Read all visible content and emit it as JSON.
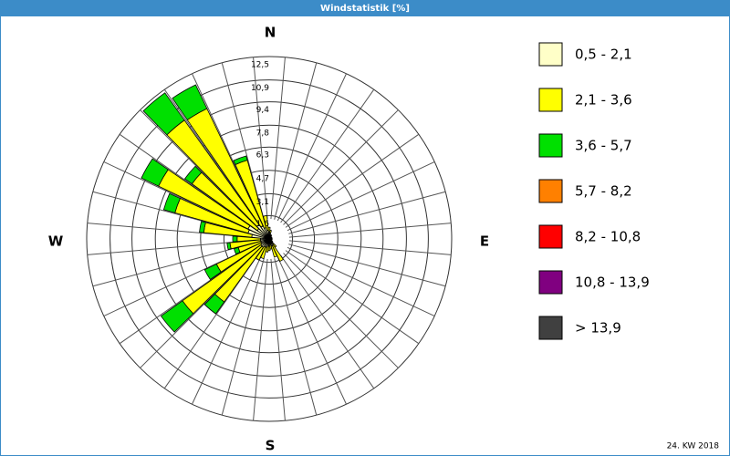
{
  "chart_data": {
    "type": "windrose",
    "title": "Windstatistik [%]",
    "footer": "24. KW 2018",
    "cardinal_labels": [
      "N",
      "E",
      "S",
      "W"
    ],
    "x": [
      0,
      10,
      20,
      30,
      40,
      50,
      60,
      70,
      80,
      90,
      100,
      110,
      120,
      130,
      140,
      150,
      160,
      170,
      180,
      190,
      200,
      210,
      220,
      230,
      240,
      250,
      260,
      270,
      280,
      290,
      300,
      310,
      320,
      330,
      340,
      350
    ],
    "ylim": [
      0,
      12.5
    ],
    "yticks": [
      {
        "value": 1.6,
        "label": "1,6"
      },
      {
        "value": 3.1,
        "label": "3,1"
      },
      {
        "value": 4.7,
        "label": "4,7"
      },
      {
        "value": 6.3,
        "label": "6,3"
      },
      {
        "value": 7.8,
        "label": "7,8"
      },
      {
        "value": 9.4,
        "label": "9,4"
      },
      {
        "value": 10.9,
        "label": "10,9"
      },
      {
        "value": 12.5,
        "label": "12,5"
      }
    ],
    "series": [
      {
        "name": "0,5 - 2,1",
        "color": "#ffffc8",
        "values": [
          0.5,
          0.4,
          0.3,
          0.3,
          0.2,
          0.2,
          0.2,
          0.2,
          0.2,
          0.2,
          0.2,
          0.2,
          0.2,
          0.3,
          0.4,
          0.5,
          0.5,
          0.4,
          0.5,
          0.5,
          0.6,
          0.6,
          0.7,
          0.7,
          0.6,
          0.6,
          0.6,
          0.6,
          1.2,
          1.5,
          1.6,
          1.0,
          1.2,
          1.0,
          0.8,
          0.6
        ]
      },
      {
        "name": "2,1 - 3,6",
        "color": "#ffff00",
        "values": [
          0.3,
          0.2,
          0,
          0,
          0,
          0,
          0,
          0,
          0,
          0,
          0,
          0,
          0,
          0,
          0.3,
          1.2,
          0.8,
          0.3,
          0.3,
          0.4,
          0.8,
          1.0,
          4.6,
          6.6,
          3.4,
          1.6,
          2.1,
          1.6,
          3.3,
          5.2,
          6.8,
          5.5,
          8.8,
          8.9,
          4.8,
          1.0
        ]
      },
      {
        "name": "3,6 - 5,7",
        "color": "#00e000",
        "values": [
          0,
          0,
          0,
          0,
          0,
          0,
          0,
          0,
          0,
          0,
          0,
          0,
          0,
          0,
          0,
          0,
          0,
          0,
          0,
          0,
          0,
          0,
          1.0,
          1.8,
          0.9,
          0.3,
          0.2,
          0.3,
          0.3,
          0.8,
          1.3,
          0.6,
          2.3,
          1.8,
          0.3,
          0
        ]
      },
      {
        "name": "5,7 - 8,2",
        "color": "#ff8000",
        "values": [
          0,
          0,
          0,
          0,
          0,
          0,
          0,
          0,
          0,
          0,
          0,
          0,
          0,
          0,
          0,
          0,
          0,
          0,
          0,
          0,
          0,
          0,
          0,
          0,
          0,
          0,
          0,
          0,
          0,
          0,
          0,
          0,
          0,
          0,
          0,
          0
        ]
      },
      {
        "name": "8,2 - 10,8",
        "color": "#ff0000",
        "values": [
          0,
          0,
          0,
          0,
          0,
          0,
          0,
          0,
          0,
          0,
          0,
          0,
          0,
          0,
          0,
          0,
          0,
          0,
          0,
          0,
          0,
          0,
          0,
          0,
          0,
          0,
          0,
          0,
          0,
          0,
          0,
          0,
          0,
          0,
          0,
          0
        ]
      },
      {
        "name": "10,8 - 13,9",
        "color": "#800080",
        "values": [
          0,
          0,
          0,
          0,
          0,
          0,
          0,
          0,
          0,
          0,
          0,
          0,
          0,
          0,
          0,
          0,
          0,
          0,
          0,
          0,
          0,
          0,
          0,
          0,
          0,
          0,
          0,
          0,
          0,
          0,
          0,
          0,
          0,
          0,
          0,
          0
        ]
      },
      {
        "name": " > 13,9",
        "color": "#404040",
        "values": [
          0,
          0,
          0,
          0,
          0,
          0,
          0,
          0,
          0,
          0,
          0,
          0,
          0,
          0,
          0,
          0,
          0,
          0,
          0,
          0,
          0,
          0,
          0,
          0,
          0,
          0,
          0,
          0,
          0,
          0,
          0,
          0,
          0,
          0,
          0,
          0
        ]
      }
    ]
  }
}
